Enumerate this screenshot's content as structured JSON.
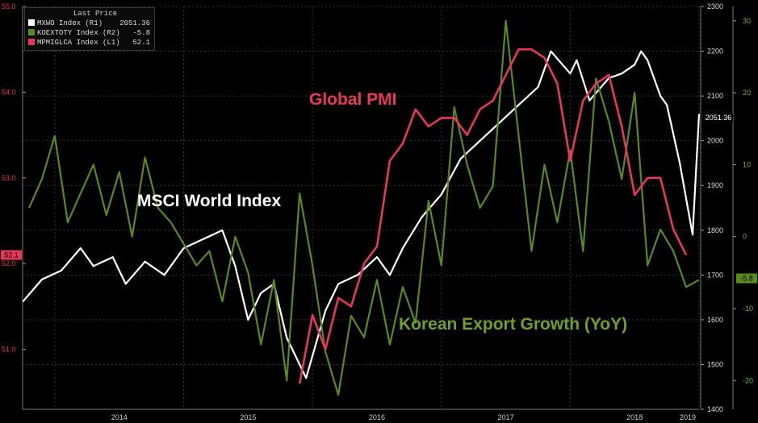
{
  "legend": {
    "header": "Last Price",
    "items": [
      {
        "name": "MXWO Index (R1)",
        "value": "2051.36",
        "color": "#ffffff"
      },
      {
        "name": "KOEXTOTY Index (R2)",
        "value": "-5.8",
        "color": "#5a8a1e"
      },
      {
        "name": "MPMIGLCA Index (L1)",
        "value": "52.1",
        "color": "#e8375a"
      }
    ]
  },
  "annotations": {
    "msci": "MSCI World Index",
    "pmi": "Global PMI",
    "korea": "Korean Export Growth (YoY)"
  },
  "chart_data": {
    "type": "line",
    "x_axis": {
      "ticks": [
        "2014",
        "2015",
        "2016",
        "2017",
        "2018",
        "2019"
      ],
      "range": [
        2013.75,
        2019.0
      ]
    },
    "axes": {
      "left": {
        "ticks": [
          "55.0",
          "54.0",
          "53.0",
          "52.0",
          "51.0"
        ],
        "range": [
          50.3,
          55.0
        ]
      },
      "right1": {
        "ticks": [
          "2300",
          "2200",
          "2100",
          "2000",
          "1900",
          "1800",
          "1700",
          "1600",
          "1500",
          "1400"
        ],
        "range": [
          1400,
          2300
        ]
      },
      "right2": {
        "ticks": [
          "30",
          "20",
          "10",
          "0",
          "-10",
          "-20"
        ],
        "range": [
          -24,
          32
        ]
      }
    },
    "last_labels": {
      "pmi": "52.1",
      "msci": "2051.36",
      "korea": "-5.8"
    },
    "series": [
      {
        "name": "MSCI World Index",
        "axis": "right1",
        "color": "#ffffff",
        "x": [
          2013.75,
          2013.9,
          2014.05,
          2014.2,
          2014.3,
          2014.45,
          2014.55,
          2014.7,
          2014.85,
          2015.0,
          2015.15,
          2015.3,
          2015.4,
          2015.5,
          2015.6,
          2015.7,
          2015.8,
          2015.95,
          2016.1,
          2016.2,
          2016.35,
          2016.5,
          2016.6,
          2016.7,
          2016.85,
          2017.0,
          2017.15,
          2017.3,
          2017.45,
          2017.6,
          2017.75,
          2017.85,
          2018.0,
          2018.05,
          2018.15,
          2018.3,
          2018.4,
          2018.5,
          2018.55,
          2018.6,
          2018.7,
          2018.75,
          2018.85,
          2018.95,
          2019.0
        ],
        "values": [
          1640,
          1690,
          1710,
          1760,
          1720,
          1740,
          1680,
          1730,
          1700,
          1760,
          1780,
          1800,
          1720,
          1600,
          1660,
          1680,
          1560,
          1470,
          1620,
          1680,
          1700,
          1740,
          1700,
          1760,
          1830,
          1880,
          1960,
          2000,
          2040,
          2080,
          2120,
          2200,
          2150,
          2180,
          2090,
          2140,
          2150,
          2170,
          2200,
          2180,
          2100,
          2080,
          1950,
          1790,
          2060
        ]
      },
      {
        "name": "Korean Export Growth (YoY)",
        "axis": "right2",
        "color": "#5a8a1e",
        "x": [
          2013.8,
          2013.9,
          2014.0,
          2014.1,
          2014.2,
          2014.3,
          2014.4,
          2014.5,
          2014.6,
          2014.7,
          2014.8,
          2014.9,
          2015.0,
          2015.1,
          2015.2,
          2015.3,
          2015.4,
          2015.5,
          2015.6,
          2015.7,
          2015.8,
          2015.9,
          2016.0,
          2016.1,
          2016.2,
          2016.3,
          2016.4,
          2016.5,
          2016.6,
          2016.7,
          2016.8,
          2016.9,
          2017.0,
          2017.1,
          2017.2,
          2017.3,
          2017.4,
          2017.5,
          2017.6,
          2017.7,
          2017.8,
          2017.9,
          2018.0,
          2018.1,
          2018.2,
          2018.3,
          2018.4,
          2018.5,
          2018.6,
          2018.7,
          2018.8,
          2018.9,
          2019.0
        ],
        "values": [
          4,
          8,
          14,
          2,
          6,
          10,
          3,
          9,
          0,
          11,
          4,
          2,
          -1,
          -4,
          -2,
          -9,
          0,
          -5,
          -15,
          -6,
          -20,
          6,
          -4,
          -16,
          -22,
          -11,
          -14,
          -6,
          -15,
          -7,
          -12,
          5,
          -4,
          18,
          10,
          4,
          7,
          30,
          14,
          -2,
          10,
          2,
          12,
          -2,
          22,
          16,
          8,
          20,
          -4,
          1,
          -2,
          -7,
          -6
        ]
      },
      {
        "name": "Global PMI",
        "axis": "left",
        "color": "#e8375a",
        "x": [
          2015.9,
          2016.0,
          2016.1,
          2016.2,
          2016.3,
          2016.4,
          2016.5,
          2016.6,
          2016.7,
          2016.8,
          2016.9,
          2017.0,
          2017.1,
          2017.2,
          2017.3,
          2017.4,
          2017.5,
          2017.6,
          2017.7,
          2017.8,
          2017.9,
          2018.0,
          2018.1,
          2018.2,
          2018.3,
          2018.4,
          2018.5,
          2018.6,
          2018.7,
          2018.8,
          2018.9
        ],
        "values": [
          50.6,
          51.4,
          51.0,
          51.6,
          51.5,
          52.0,
          52.2,
          53.2,
          53.4,
          53.8,
          53.6,
          53.7,
          53.7,
          53.5,
          53.8,
          53.9,
          54.2,
          54.5,
          54.5,
          54.4,
          54.1,
          53.2,
          53.9,
          54.1,
          54.2,
          53.6,
          52.8,
          53.0,
          53.0,
          52.4,
          52.1
        ]
      }
    ]
  }
}
